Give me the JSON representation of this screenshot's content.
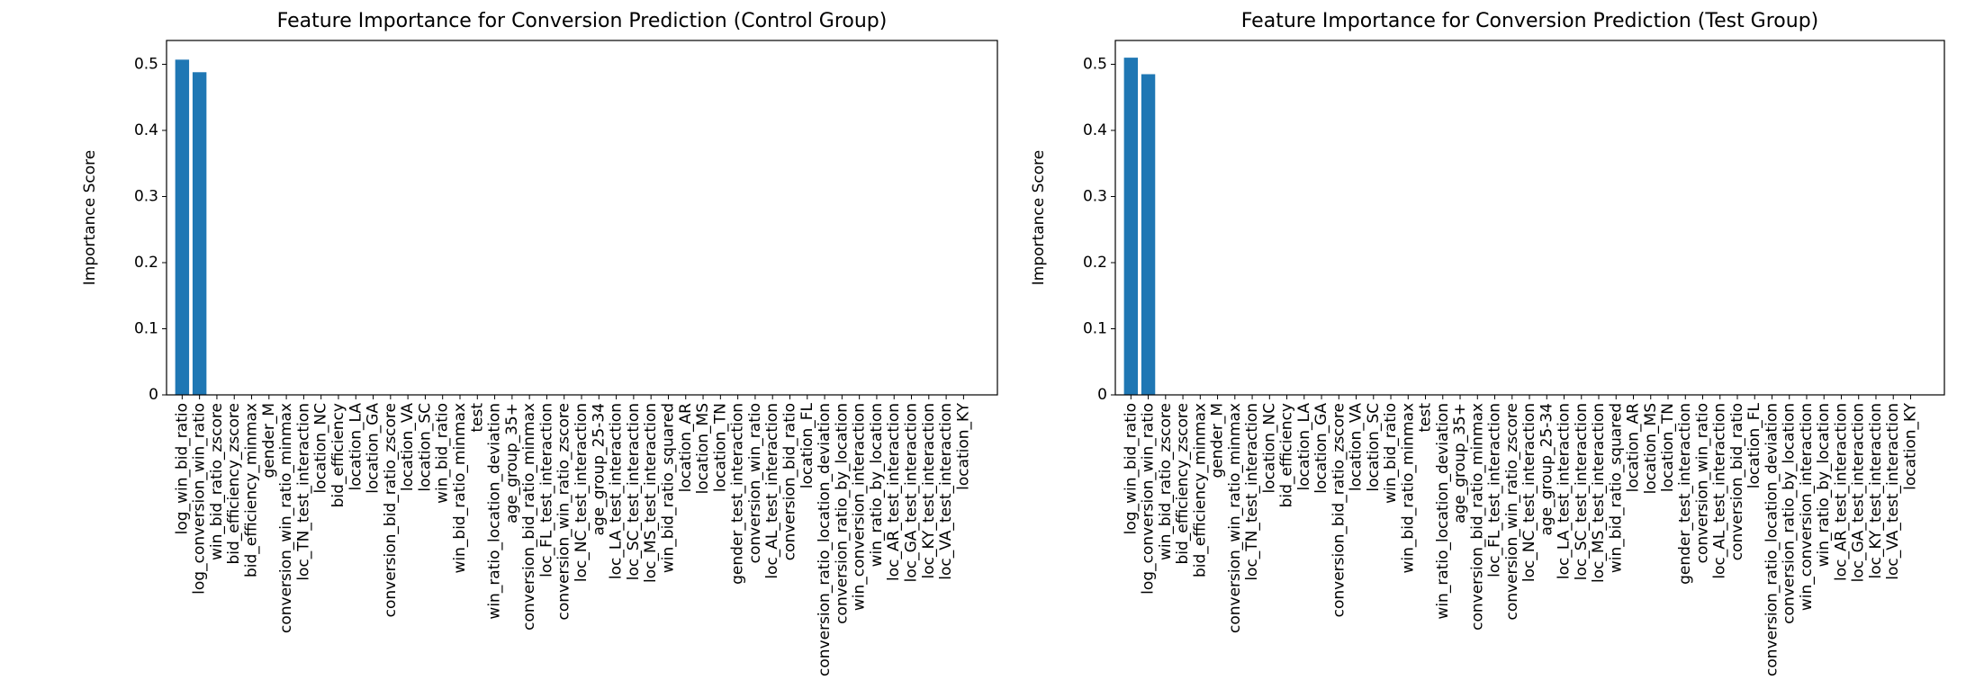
{
  "chart_data": [
    {
      "type": "bar",
      "title": "Feature Importance for Conversion Prediction (Control Group)",
      "y_label": "Importance Score",
      "categories": [
        "log_win_bid_ratio",
        "log_conversion_win_ratio",
        "win_bid_ratio_zscore",
        "bid_efficiency_zscore",
        "bid_efficiency_minmax",
        "gender_M",
        "conversion_win_ratio_minmax",
        "loc_TN_test_interaction",
        "location_NC",
        "bid_efficiency",
        "location_LA",
        "location_GA",
        "conversion_bid_ratio_zscore",
        "location_VA",
        "location_SC",
        "win_bid_ratio",
        "win_bid_ratio_minmax",
        "test",
        "win_ratio_location_deviation",
        "age_group_35+",
        "conversion_bid_ratio_minmax",
        "loc_FL_test_interaction",
        "conversion_win_ratio_zscore",
        "loc_NC_test_interaction",
        "age_group_25-34",
        "loc_LA_test_interaction",
        "loc_SC_test_interaction",
        "loc_MS_test_interaction",
        "win_bid_ratio_squared",
        "location_AR",
        "location_MS",
        "location_TN",
        "gender_test_interaction",
        "conversion_win_ratio",
        "loc_AL_test_interaction",
        "conversion_bid_ratio",
        "location_FL",
        "conversion_ratio_location_deviation",
        "conversion_ratio_by_location",
        "win_conversion_interaction",
        "win_ratio_by_location",
        "loc_AR_test_interaction",
        "loc_GA_test_interaction",
        "loc_KY_test_interaction",
        "loc_VA_test_interaction",
        "location_KY"
      ],
      "values": [
        0.507,
        0.488,
        0,
        0,
        0,
        0,
        0,
        0,
        0,
        0,
        0,
        0,
        0,
        0,
        0,
        0,
        0,
        0,
        0,
        0,
        0,
        0,
        0,
        0,
        0,
        0,
        0,
        0,
        0,
        0,
        0,
        0,
        0,
        0,
        0,
        0,
        0,
        0,
        0,
        0,
        0,
        0,
        0,
        0,
        0,
        0
      ],
      "color": "#1f77b4",
      "ylim": [
        0,
        0.536
      ],
      "yticks": [
        0.0,
        0.1,
        0.2,
        0.3,
        0.4,
        0.5
      ],
      "grid": false
    },
    {
      "type": "bar",
      "title": "Feature Importance for Conversion Prediction (Test Group)",
      "y_label": "Importance Score",
      "categories": [
        "log_win_bid_ratio",
        "log_conversion_win_ratio",
        "win_bid_ratio_zscore",
        "bid_efficiency_zscore",
        "bid_efficiency_minmax",
        "gender_M",
        "conversion_win_ratio_minmax",
        "loc_TN_test_interaction",
        "location_NC",
        "bid_efficiency",
        "location_LA",
        "location_GA",
        "conversion_bid_ratio_zscore",
        "location_VA",
        "location_SC",
        "win_bid_ratio",
        "win_bid_ratio_minmax",
        "test",
        "win_ratio_location_deviation",
        "age_group_35+",
        "conversion_bid_ratio_minmax",
        "loc_FL_test_interaction",
        "conversion_win_ratio_zscore",
        "loc_NC_test_interaction",
        "age_group_25-34",
        "loc_LA_test_interaction",
        "loc_SC_test_interaction",
        "loc_MS_test_interaction",
        "win_bid_ratio_squared",
        "location_AR",
        "location_MS",
        "location_TN",
        "gender_test_interaction",
        "conversion_win_ratio",
        "loc_AL_test_interaction",
        "conversion_bid_ratio",
        "location_FL",
        "conversion_ratio_location_deviation",
        "conversion_ratio_by_location",
        "win_conversion_interaction",
        "win_ratio_by_location",
        "loc_AR_test_interaction",
        "loc_GA_test_interaction",
        "loc_KY_test_interaction",
        "loc_VA_test_interaction",
        "location_KY"
      ],
      "values": [
        0.51,
        0.485,
        0,
        0,
        0,
        0,
        0,
        0,
        0,
        0,
        0,
        0,
        0,
        0,
        0,
        0,
        0,
        0,
        0,
        0,
        0,
        0,
        0,
        0,
        0,
        0,
        0,
        0,
        0,
        0,
        0,
        0,
        0,
        0,
        0,
        0,
        0,
        0,
        0,
        0,
        0,
        0,
        0,
        0,
        0,
        0
      ],
      "color": "#1f77b4",
      "ylim": [
        0,
        0.536
      ],
      "yticks": [
        0.0,
        0.1,
        0.2,
        0.3,
        0.4,
        0.5
      ],
      "grid": false
    }
  ]
}
